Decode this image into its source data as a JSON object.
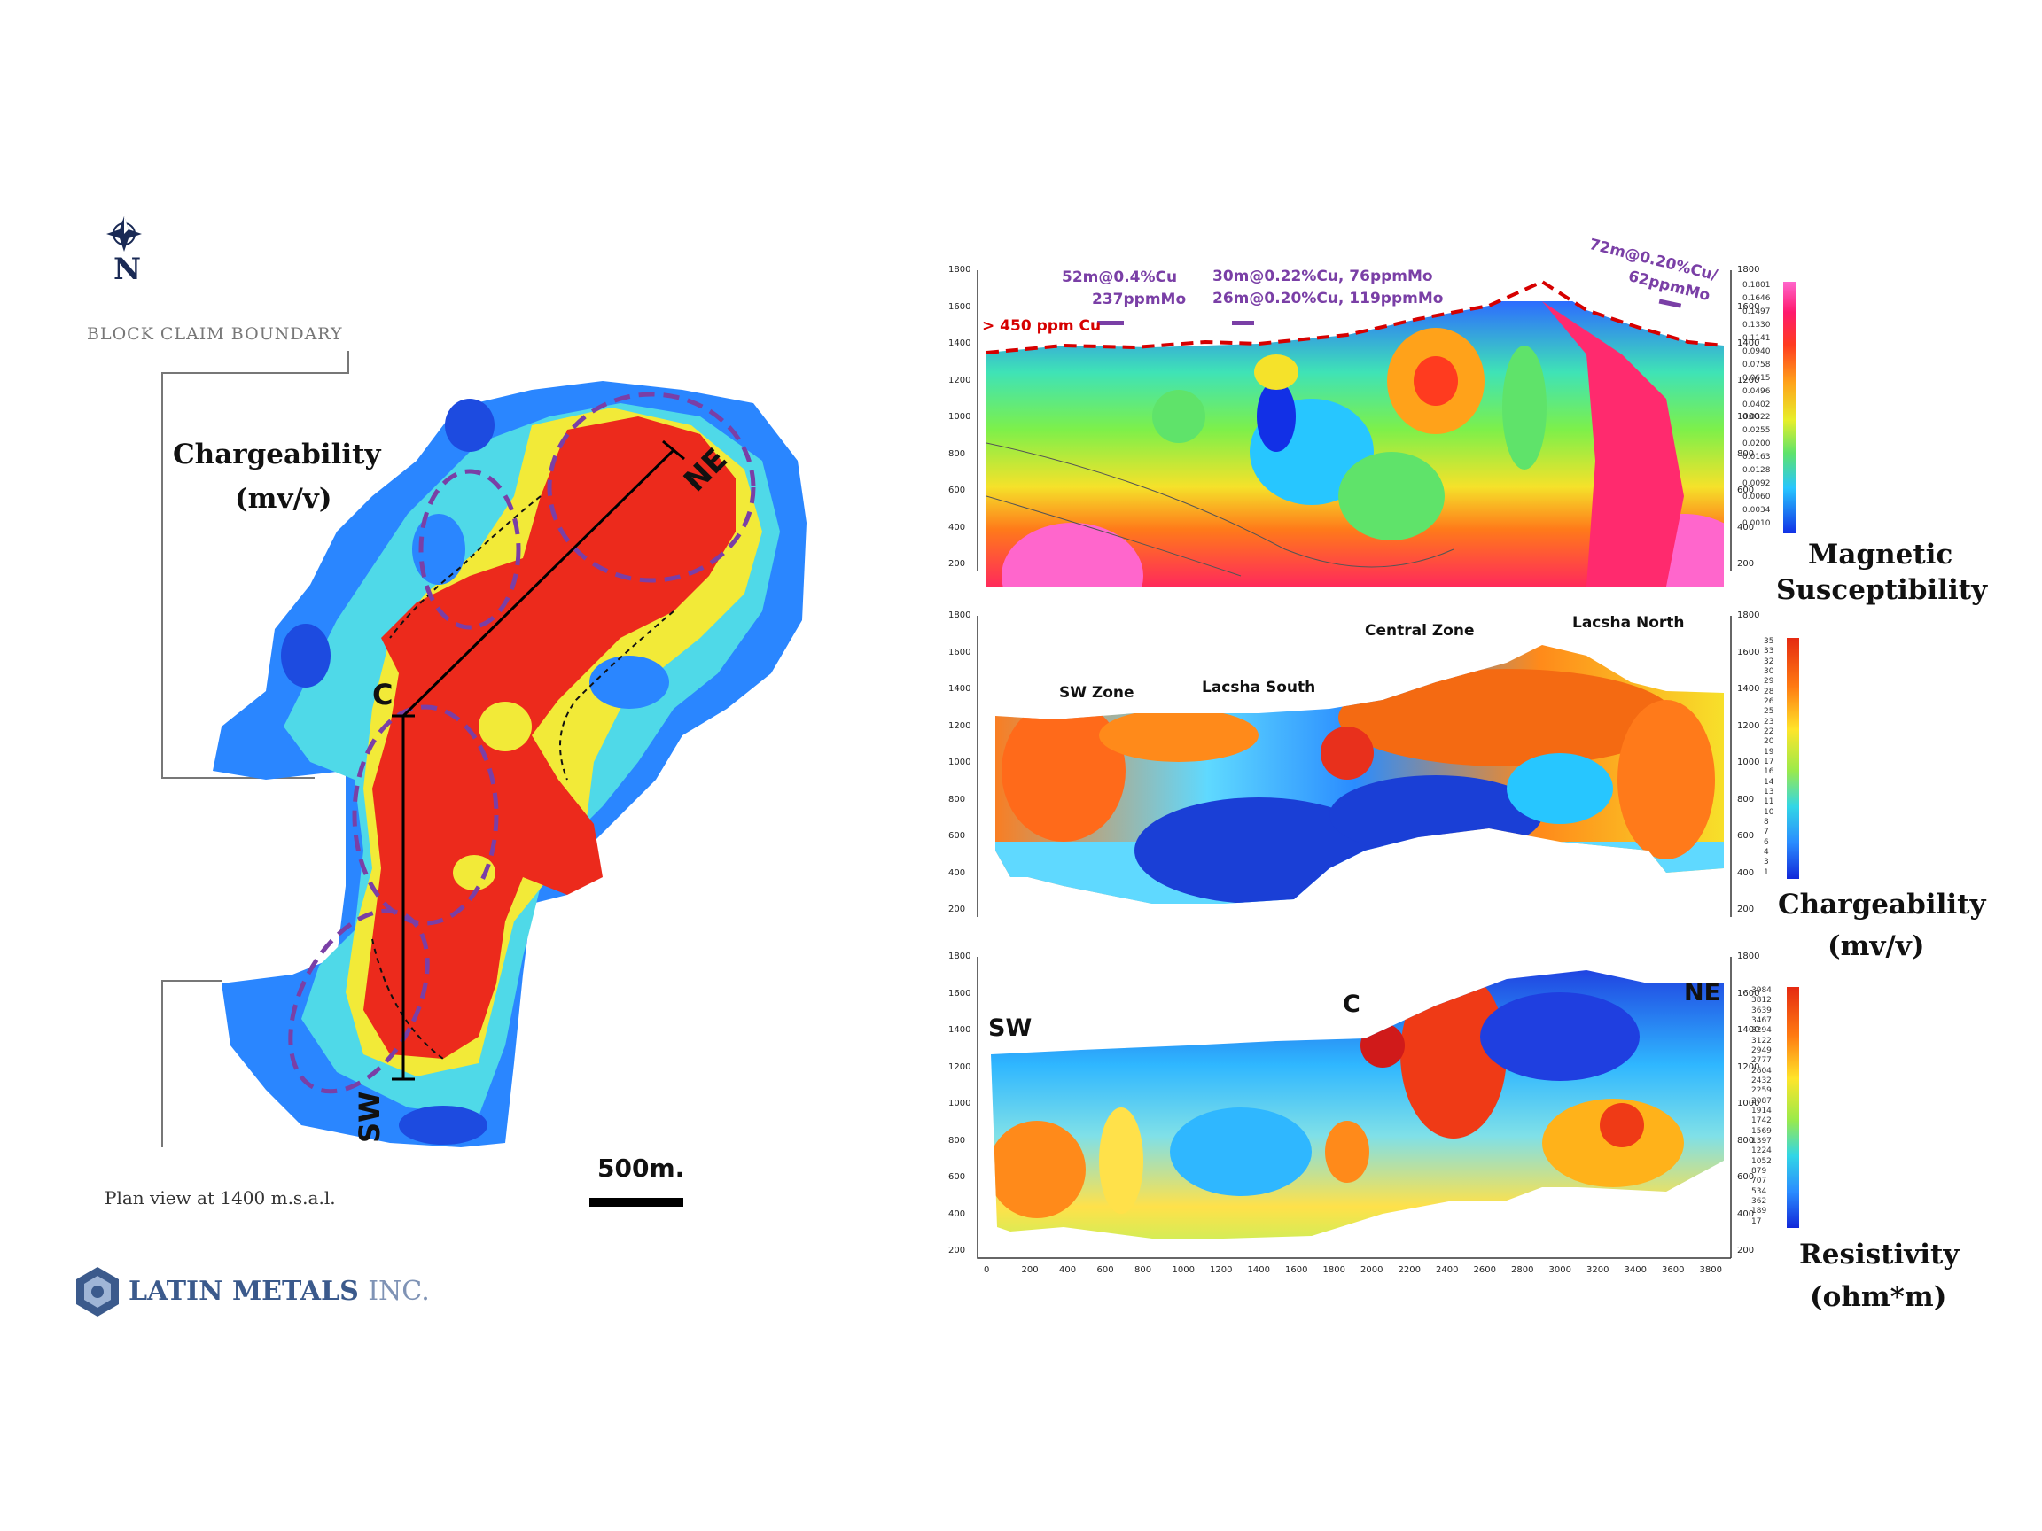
{
  "left": {
    "north_label": "N",
    "block_claim_label": "BLOCK CLAIM BOUNDARY",
    "map_title_line1": "Chargeability",
    "map_title_line2": "(mv/v)",
    "section_labels": {
      "ne": "NE",
      "c": "C",
      "sw": "SW"
    },
    "scale_label": "500m.",
    "plan_view_label": "Plan view at 1400 m.s.a.l.",
    "company_name": "LATIN METALS",
    "company_suffix": "INC."
  },
  "magnetic": {
    "legend_title_line1": "Magnetic",
    "legend_title_line2": "Susceptibility",
    "legend_values": [
      "0.1801",
      "0.1646",
      "0.1497",
      "0.1330",
      "0.1141",
      "0.0940",
      "0.0758",
      "0.0615",
      "0.0496",
      "0.0402",
      "0.0322",
      "0.0255",
      "0.0200",
      "0.0163",
      "0.0128",
      "0.0092",
      "0.0060",
      "0.0034",
      "0.0010"
    ],
    "cu_label": "> 450 ppm Cu",
    "intercept1_line1": "52m@0.4%Cu",
    "intercept1_line2": "237ppmMo",
    "intercept2_line1": "30m@0.22%Cu, 76ppmMo",
    "intercept2_line2": "26m@0.20%Cu, 119ppmMo",
    "intercept3_line1": "72m@0.20%Cu/",
    "intercept3_line2": "62ppmMo",
    "y_ticks": [
      "1800",
      "1600",
      "1400",
      "1200",
      "1000",
      "800",
      "600",
      "400",
      "200"
    ]
  },
  "chargeability": {
    "legend_title_line1": "Chargeability",
    "legend_title_line2": "(mv/v)",
    "legend_values": [
      "35",
      "33",
      "32",
      "30",
      "29",
      "28",
      "26",
      "25",
      "23",
      "22",
      "20",
      "19",
      "17",
      "16",
      "14",
      "13",
      "11",
      "10",
      "8",
      "7",
      "6",
      "4",
      "3",
      "1"
    ],
    "zone_sw": "SW Zone",
    "zone_lacsha_south": "Lacsha South",
    "zone_central": "Central Zone",
    "zone_lacsha_north": "Lacsha North",
    "y_ticks": [
      "1800",
      "1600",
      "1400",
      "1200",
      "1000",
      "800",
      "600",
      "400",
      "200"
    ]
  },
  "resistivity": {
    "legend_title_line1": "Resistivity",
    "legend_title_line2": "(ohm*m)",
    "legend_values": [
      "3984",
      "3812",
      "3639",
      "3467",
      "3294",
      "3122",
      "2949",
      "2777",
      "2604",
      "2432",
      "2259",
      "2087",
      "1914",
      "1742",
      "1569",
      "1397",
      "1224",
      "1052",
      "879",
      "707",
      "534",
      "362",
      "189",
      "17"
    ],
    "label_sw": "SW",
    "label_c": "C",
    "label_ne": "NE",
    "y_ticks": [
      "1800",
      "1600",
      "1400",
      "1200",
      "1000",
      "800",
      "600",
      "400",
      "200"
    ],
    "x_ticks": [
      "0",
      "200",
      "400",
      "600",
      "800",
      "1000",
      "1200",
      "1400",
      "1600",
      "1800",
      "2000",
      "2200",
      "2400",
      "2600",
      "2800",
      "3000",
      "3200",
      "3400",
      "3600",
      "3800"
    ]
  },
  "colors": {
    "accent_purple": "#7a3fa6",
    "cu_red": "#d60000",
    "hot": "#e8301c",
    "cold": "#1a3fd6"
  }
}
